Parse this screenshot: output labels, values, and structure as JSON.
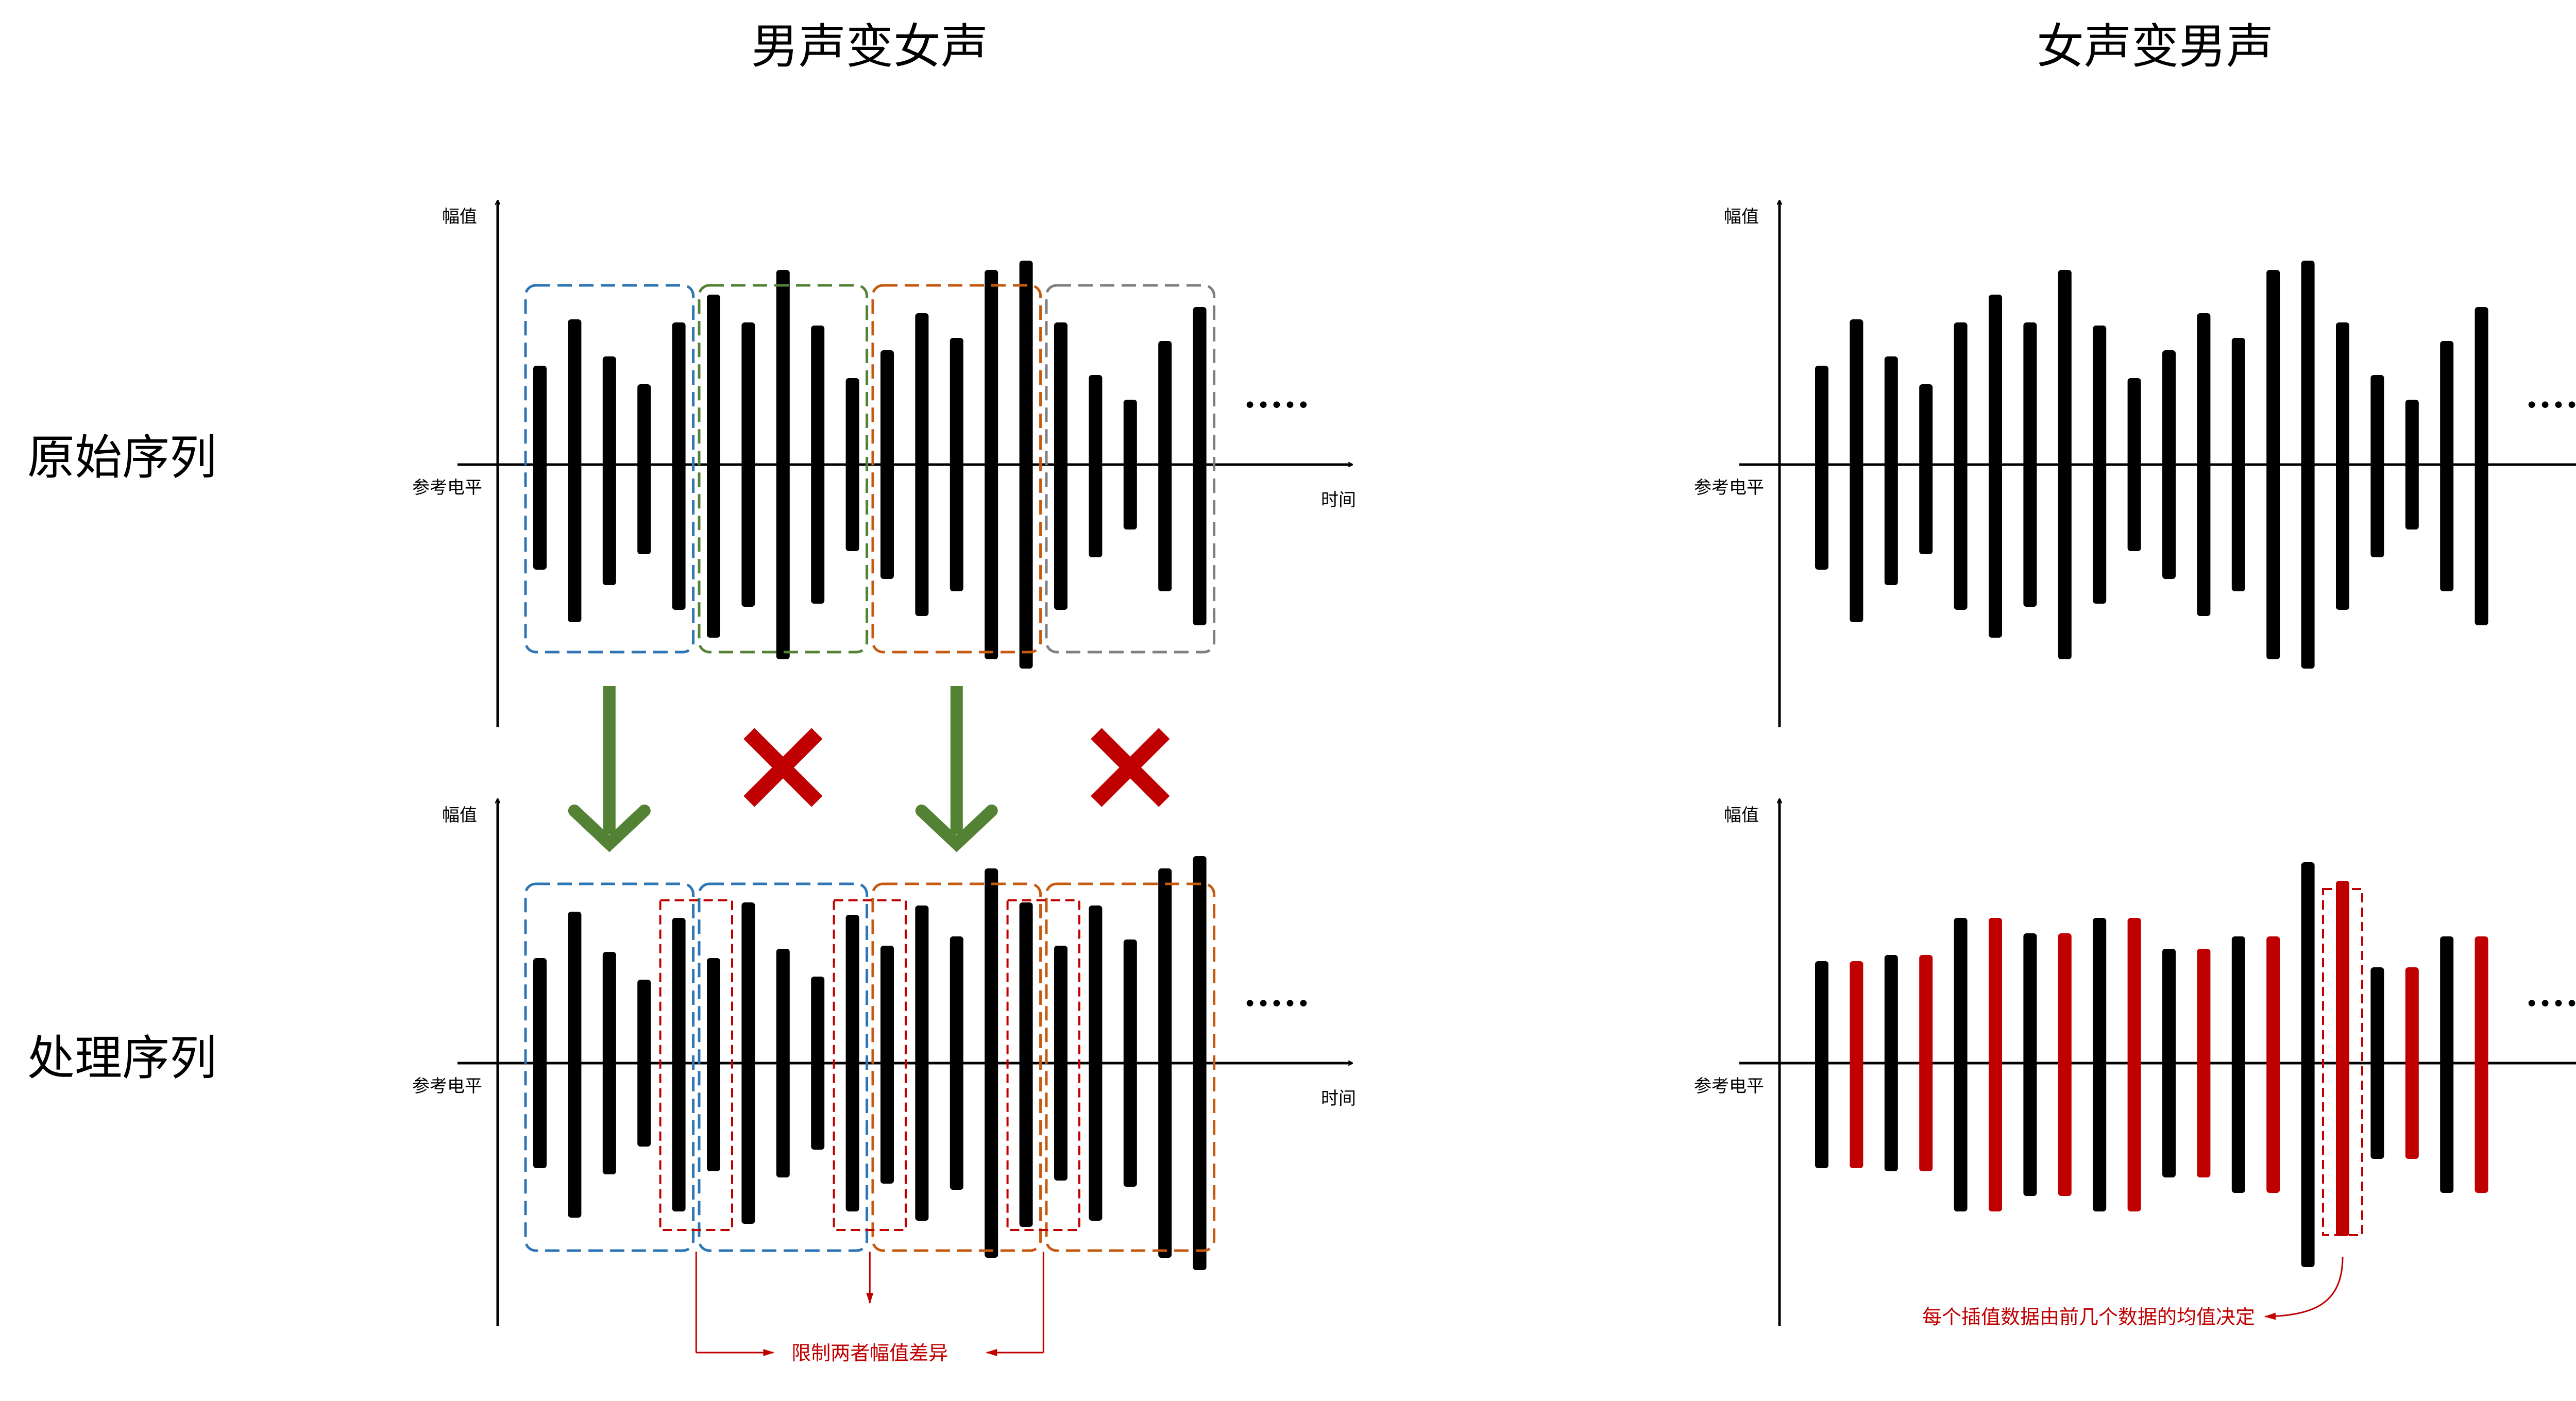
{
  "titles": {
    "left": "男声变女声",
    "right": "女声变男声"
  },
  "row_labels": {
    "top": "原始序列",
    "bottom": "处理序列"
  },
  "axis_labels": {
    "y": "幅值",
    "x": "时间",
    "ref": "参考电平"
  },
  "ellipsis": "•••••",
  "annotations": {
    "left": "限制两者幅值差异",
    "right": "每个插值数据由前几个数据的均值决定"
  },
  "colors": {
    "bar": "#000000",
    "interp_bar": "#c00000",
    "green_arrow": "#548235",
    "red_cross": "#c00000",
    "box_blue": "#2e75b6",
    "box_green": "#548235",
    "box_orange": "#c55a11",
    "box_gray": "#7f7f7f",
    "box_red": "#c00000"
  },
  "sequences": {
    "original": [
      {
        "up": 0.32,
        "down": 0.34
      },
      {
        "up": 0.47,
        "down": 0.51
      },
      {
        "up": 0.35,
        "down": 0.39
      },
      {
        "up": 0.26,
        "down": 0.29
      },
      {
        "up": 0.46,
        "down": 0.47
      },
      {
        "up": 0.55,
        "down": 0.56
      },
      {
        "up": 0.46,
        "down": 0.46
      },
      {
        "up": 0.63,
        "down": 0.63
      },
      {
        "up": 0.45,
        "down": 0.45
      },
      {
        "up": 0.28,
        "down": 0.28
      },
      {
        "up": 0.37,
        "down": 0.37
      },
      {
        "up": 0.49,
        "down": 0.49
      },
      {
        "up": 0.41,
        "down": 0.41
      },
      {
        "up": 0.63,
        "down": 0.63
      },
      {
        "up": 0.66,
        "down": 0.66
      },
      {
        "up": 0.46,
        "down": 0.47
      },
      {
        "up": 0.29,
        "down": 0.3
      },
      {
        "up": 0.21,
        "down": 0.21
      },
      {
        "up": 0.4,
        "down": 0.41
      },
      {
        "up": 0.51,
        "down": 0.52
      }
    ],
    "male_processed": [
      {
        "up": 0.34,
        "down": 0.34
      },
      {
        "up": 0.49,
        "down": 0.5
      },
      {
        "up": 0.36,
        "down": 0.36
      },
      {
        "up": 0.27,
        "down": 0.27
      },
      {
        "up": 0.47,
        "down": 0.48
      },
      {
        "up": 0.34,
        "down": 0.35
      },
      {
        "up": 0.52,
        "down": 0.52
      },
      {
        "up": 0.37,
        "down": 0.37
      },
      {
        "up": 0.28,
        "down": 0.28
      },
      {
        "up": 0.48,
        "down": 0.48
      },
      {
        "up": 0.38,
        "down": 0.39
      },
      {
        "up": 0.51,
        "down": 0.51
      },
      {
        "up": 0.41,
        "down": 0.41
      },
      {
        "up": 0.63,
        "down": 0.63
      },
      {
        "up": 0.52,
        "down": 0.53
      },
      {
        "up": 0.38,
        "down": 0.38
      },
      {
        "up": 0.51,
        "down": 0.51
      },
      {
        "up": 0.4,
        "down": 0.4
      },
      {
        "up": 0.63,
        "down": 0.63
      },
      {
        "up": 0.67,
        "down": 0.67
      }
    ],
    "female_processed": [
      {
        "up": 0.33,
        "down": 0.34,
        "interp": false
      },
      {
        "up": 0.33,
        "down": 0.34,
        "interp": true
      },
      {
        "up": 0.35,
        "down": 0.35,
        "interp": false
      },
      {
        "up": 0.35,
        "down": 0.35,
        "interp": true
      },
      {
        "up": 0.47,
        "down": 0.48,
        "interp": false
      },
      {
        "up": 0.47,
        "down": 0.48,
        "interp": true
      },
      {
        "up": 0.42,
        "down": 0.43,
        "interp": false
      },
      {
        "up": 0.42,
        "down": 0.43,
        "interp": true
      },
      {
        "up": 0.47,
        "down": 0.48,
        "interp": false
      },
      {
        "up": 0.47,
        "down": 0.48,
        "interp": true
      },
      {
        "up": 0.37,
        "down": 0.37,
        "interp": false
      },
      {
        "up": 0.37,
        "down": 0.37,
        "interp": true
      },
      {
        "up": 0.41,
        "down": 0.42,
        "interp": false
      },
      {
        "up": 0.41,
        "down": 0.42,
        "interp": true
      },
      {
        "up": 0.65,
        "down": 0.66,
        "interp": false
      },
      {
        "up": 0.59,
        "down": 0.56,
        "interp": true
      },
      {
        "up": 0.31,
        "down": 0.31,
        "interp": false
      },
      {
        "up": 0.31,
        "down": 0.31,
        "interp": true
      },
      {
        "up": 0.41,
        "down": 0.42,
        "interp": false
      },
      {
        "up": 0.41,
        "down": 0.42,
        "interp": true
      }
    ]
  },
  "groups": {
    "original_left": [
      {
        "from": 0,
        "to": 4,
        "color": "box_blue"
      },
      {
        "from": 5,
        "to": 9,
        "color": "box_green"
      },
      {
        "from": 10,
        "to": 14,
        "color": "box_orange"
      },
      {
        "from": 15,
        "to": 19,
        "color": "box_gray"
      }
    ],
    "processed_left": [
      {
        "from": 0,
        "to": 4,
        "color": "box_blue"
      },
      {
        "from": 5,
        "to": 9,
        "color": "box_blue"
      },
      {
        "from": 10,
        "to": 14,
        "color": "box_orange"
      },
      {
        "from": 15,
        "to": 19,
        "color": "box_orange"
      }
    ],
    "junction_pairs": [
      [
        4,
        5
      ],
      [
        9,
        10
      ],
      [
        14,
        15
      ]
    ],
    "right_highlight": [
      15
    ]
  },
  "transitions": [
    "arrow",
    "cross",
    "arrow",
    "cross"
  ]
}
